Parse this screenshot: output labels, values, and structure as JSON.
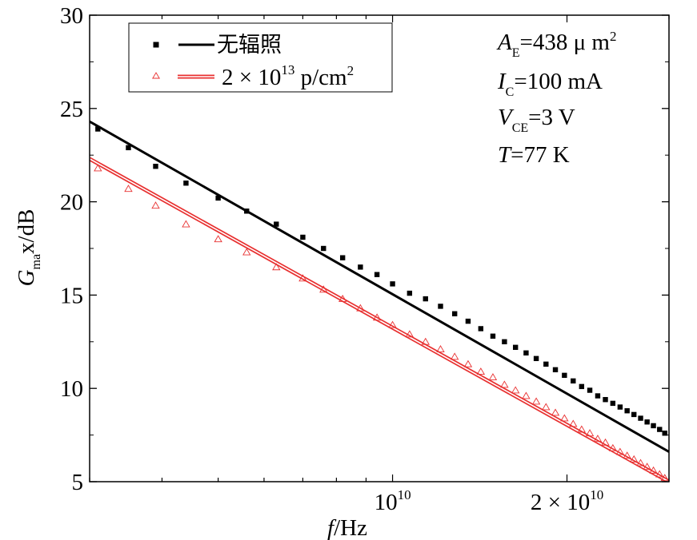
{
  "chart_data": {
    "type": "scatter",
    "x_scale": "log",
    "xlim": [
      3000000000,
      30000000000
    ],
    "ylim": [
      5,
      30
    ],
    "y_ticks": [
      5,
      10,
      15,
      20,
      25,
      30
    ],
    "y_tick_labels": [
      "5",
      "10",
      "15",
      "20",
      "25",
      "30"
    ],
    "x_tick_labels": [
      {
        "value": 10000000000,
        "base": "10",
        "exp": "10"
      },
      {
        "value": 20000000000,
        "coef": "2",
        "times": "×",
        "base": "10",
        "exp": "10"
      }
    ],
    "xlabel": {
      "italic": "f",
      "rest": "/Hz"
    },
    "ylabel": {
      "main": "G",
      "sub": "ma",
      "rest": "x/dB"
    },
    "grid": false,
    "legend_position": "top-left",
    "annotations": [
      {
        "main": "A",
        "sub": "E",
        "rest": "=438 μ m",
        "sup": "2"
      },
      {
        "main": "I",
        "sub": "C",
        "rest": "=100 mA",
        "sup": ""
      },
      {
        "main": "V",
        "sub": "CE",
        "rest": "=3 V",
        "sup": ""
      },
      {
        "main": "T",
        "sub": "",
        "rest": "=77 K",
        "sup": ""
      }
    ],
    "series": [
      {
        "name": "无辐照",
        "marker": "square",
        "color": "#000000",
        "points": [
          [
            3100000000,
            23.9
          ],
          [
            3500000000,
            22.9
          ],
          [
            3900000000,
            21.9
          ],
          [
            4400000000,
            21.0
          ],
          [
            5000000000,
            20.2
          ],
          [
            5600000000,
            19.5
          ],
          [
            6300000000,
            18.8
          ],
          [
            7000000000,
            18.1
          ],
          [
            7600000000,
            17.5
          ],
          [
            8200000000,
            17.0
          ],
          [
            8800000000,
            16.5
          ],
          [
            9400000000,
            16.1
          ],
          [
            10000000000,
            15.6
          ],
          [
            10700000000,
            15.1
          ],
          [
            11400000000,
            14.8
          ],
          [
            12100000000,
            14.4
          ],
          [
            12800000000,
            14.0
          ],
          [
            13500000000,
            13.6
          ],
          [
            14200000000,
            13.2
          ],
          [
            14900000000,
            12.8
          ],
          [
            15600000000,
            12.5
          ],
          [
            16300000000,
            12.2
          ],
          [
            17000000000,
            11.9
          ],
          [
            17700000000,
            11.6
          ],
          [
            18400000000,
            11.3
          ],
          [
            19100000000,
            11.0
          ],
          [
            19800000000,
            10.7
          ],
          [
            20500000000,
            10.4
          ],
          [
            21200000000,
            10.1
          ],
          [
            21900000000,
            9.9
          ],
          [
            22600000000,
            9.6
          ],
          [
            23300000000,
            9.4
          ],
          [
            24000000000,
            9.2
          ],
          [
            24700000000,
            9.0
          ],
          [
            25400000000,
            8.8
          ],
          [
            26100000000,
            8.6
          ],
          [
            26800000000,
            8.4
          ],
          [
            27500000000,
            8.2
          ],
          [
            28200000000,
            8.0
          ],
          [
            28900000000,
            7.8
          ],
          [
            29500000000,
            7.6
          ]
        ],
        "fit": {
          "x": [
            3000000000,
            30000000000
          ],
          "y": [
            24.3,
            6.6
          ]
        }
      },
      {
        "name": "2 × 10^13 p/cm^2",
        "label_parts": {
          "coef": "2 × 10",
          "exp": "13",
          "unit": "p/cm",
          "unit_sup": "2"
        },
        "marker": "triangle-open",
        "color": "#e83030",
        "points": [
          [
            3100000000,
            21.8
          ],
          [
            3500000000,
            20.7
          ],
          [
            3900000000,
            19.8
          ],
          [
            4400000000,
            18.8
          ],
          [
            5000000000,
            18.0
          ],
          [
            5600000000,
            17.3
          ],
          [
            6300000000,
            16.5
          ],
          [
            7000000000,
            15.9
          ],
          [
            7600000000,
            15.3
          ],
          [
            8200000000,
            14.8
          ],
          [
            8800000000,
            14.3
          ],
          [
            9400000000,
            13.8
          ],
          [
            10000000000,
            13.4
          ],
          [
            10700000000,
            12.9
          ],
          [
            11400000000,
            12.5
          ],
          [
            12100000000,
            12.1
          ],
          [
            12800000000,
            11.7
          ],
          [
            13500000000,
            11.3
          ],
          [
            14200000000,
            10.9
          ],
          [
            14900000000,
            10.6
          ],
          [
            15600000000,
            10.2
          ],
          [
            16300000000,
            9.9
          ],
          [
            17000000000,
            9.6
          ],
          [
            17700000000,
            9.3
          ],
          [
            18400000000,
            9.0
          ],
          [
            19100000000,
            8.7
          ],
          [
            19800000000,
            8.4
          ],
          [
            20500000000,
            8.1
          ],
          [
            21200000000,
            7.8
          ],
          [
            21900000000,
            7.6
          ],
          [
            22600000000,
            7.3
          ],
          [
            23300000000,
            7.1
          ],
          [
            24000000000,
            6.8
          ],
          [
            24700000000,
            6.6
          ],
          [
            25400000000,
            6.4
          ],
          [
            26100000000,
            6.2
          ],
          [
            26800000000,
            6.0
          ],
          [
            27500000000,
            5.8
          ],
          [
            28200000000,
            5.6
          ],
          [
            28900000000,
            5.4
          ],
          [
            29500000000,
            5.2
          ]
        ],
        "fit": {
          "x": [
            3000000000,
            30000000000
          ],
          "y": [
            22.3,
            5.0
          ]
        }
      }
    ]
  }
}
